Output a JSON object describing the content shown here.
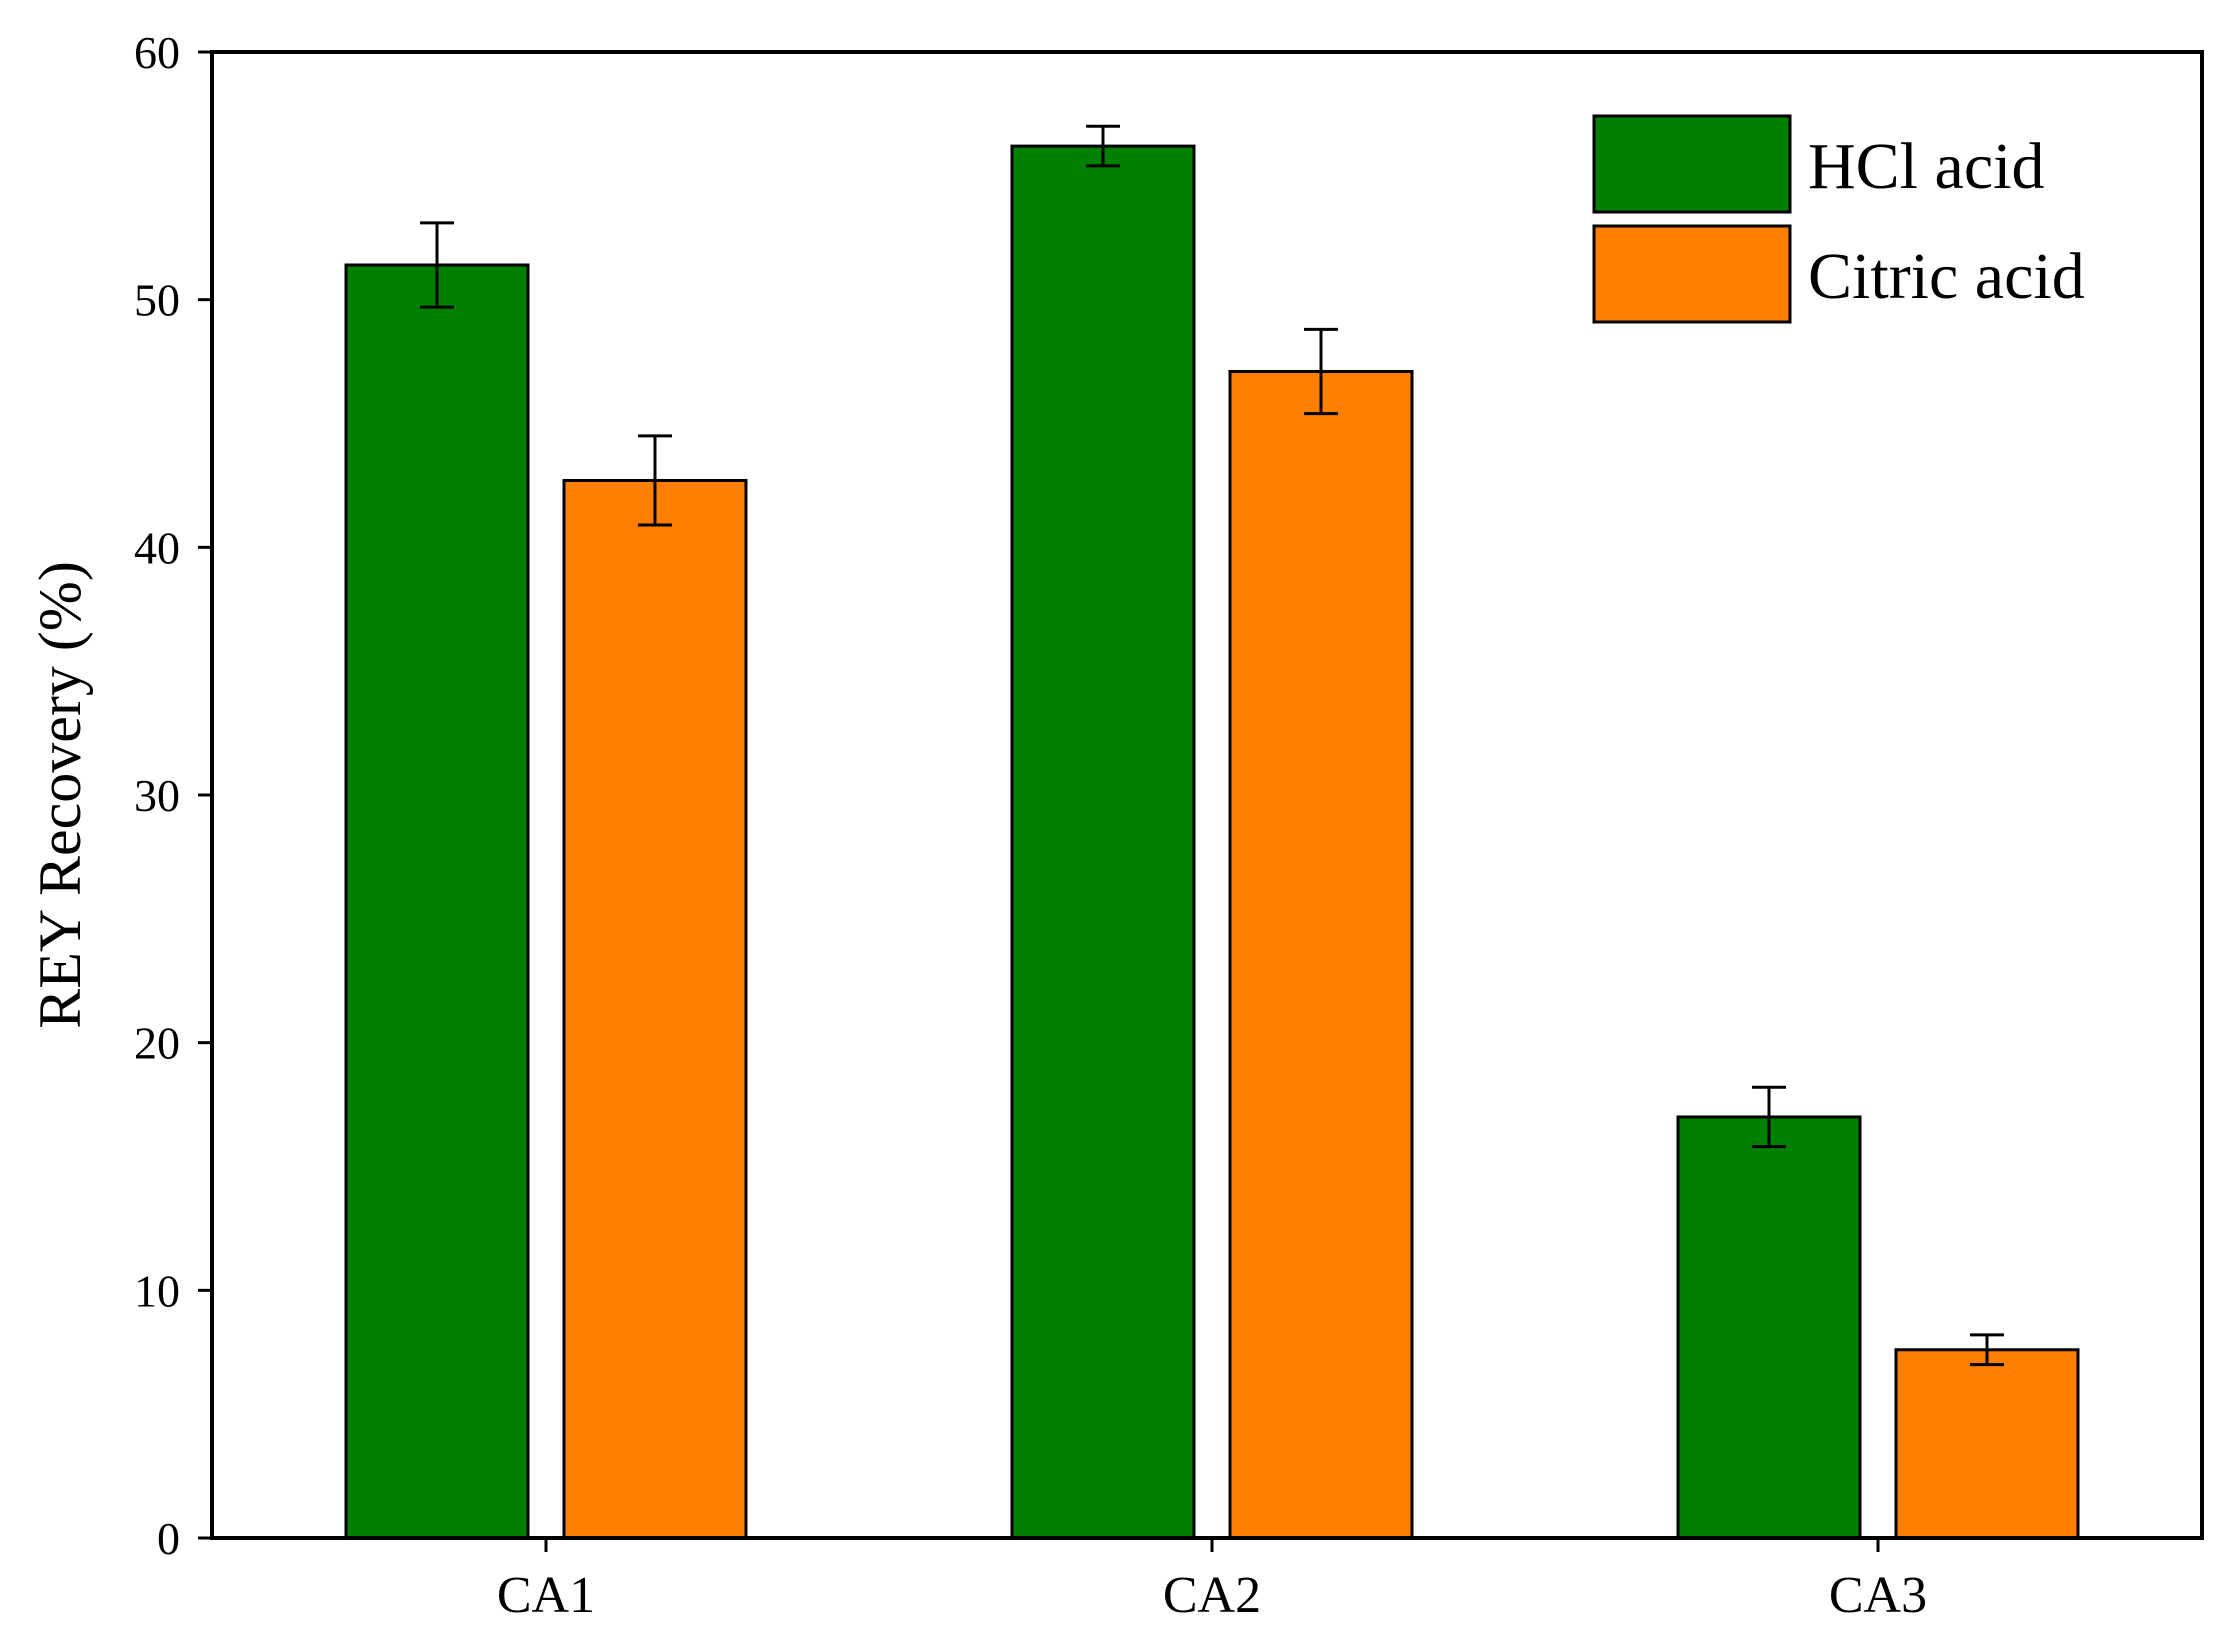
{
  "chart_data": {
    "type": "bar",
    "title": "",
    "xlabel": "",
    "ylabel": "REY Recovery (%)",
    "ylim": [
      0,
      60
    ],
    "yticks": [
      0,
      10,
      20,
      30,
      40,
      50,
      60
    ],
    "categories": [
      "CA1",
      "CA2",
      "CA3"
    ],
    "series": [
      {
        "name": "HCl acid",
        "color": "#008000",
        "values": [
          51.4,
          56.2,
          17.0
        ],
        "errors": [
          1.7,
          0.8,
          1.2
        ]
      },
      {
        "name": "Citric acid",
        "color": "#FF8000",
        "values": [
          42.7,
          47.1,
          7.6
        ],
        "errors": [
          1.8,
          1.7,
          0.6
        ]
      }
    ],
    "legend": "top-right",
    "grid": false
  }
}
